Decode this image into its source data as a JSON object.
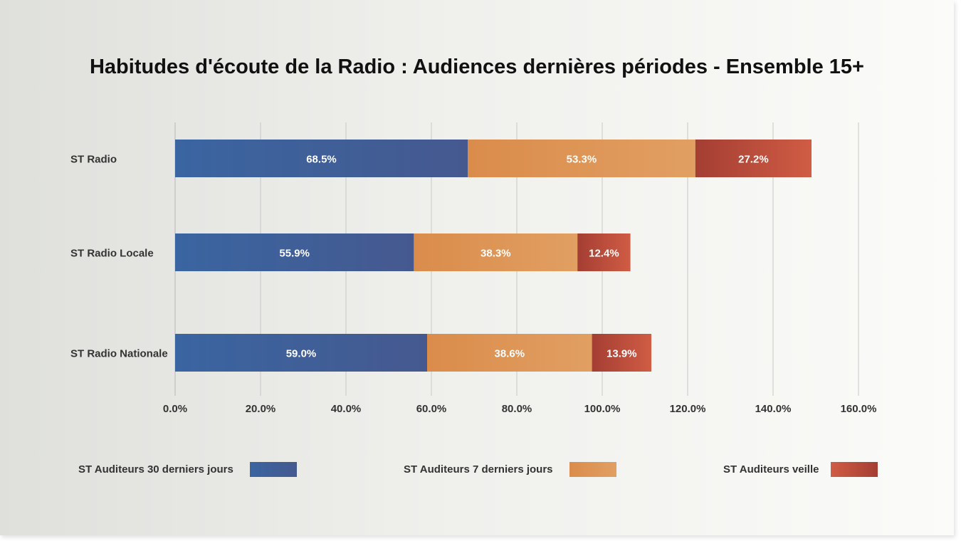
{
  "chart_data": {
    "type": "bar",
    "orientation": "horizontal",
    "stacked": true,
    "title": "Habitudes d'écoute de la Radio : Audiences dernières périodes - Ensemble 15+",
    "categories": [
      "ST Radio",
      "ST Radio Locale",
      "ST Radio Nationale"
    ],
    "series": [
      {
        "name": "ST Auditeurs 30 derniers jours",
        "values": [
          68.5,
          55.9,
          59.0
        ],
        "labels": [
          "68.5%",
          "55.9%",
          "59.0%"
        ],
        "color": "#3f5e98"
      },
      {
        "name": "ST Auditeurs 7 derniers jours",
        "values": [
          53.3,
          38.3,
          38.6
        ],
        "labels": [
          "53.3%",
          "38.3%",
          "38.6%"
        ],
        "color": "#dd9152"
      },
      {
        "name": "ST Auditeurs veille",
        "values": [
          27.2,
          12.4,
          13.9
        ],
        "labels": [
          "27.2%",
          "12.4%",
          "13.9%"
        ],
        "color": "#b8483a"
      }
    ],
    "xlim": [
      0,
      160
    ],
    "xticks": [
      "0.0%",
      "20.0%",
      "40.0%",
      "60.0%",
      "80.0%",
      "100.0%",
      "120.0%",
      "140.0%",
      "160.0%"
    ],
    "grid": true,
    "legend": "bottom"
  }
}
